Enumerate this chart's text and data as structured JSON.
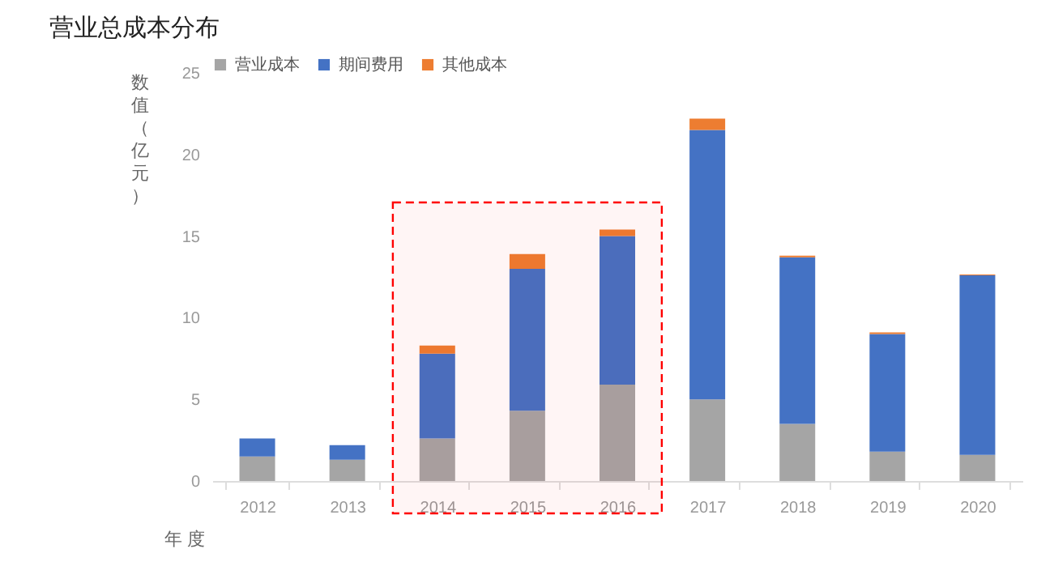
{
  "chart_data": {
    "type": "bar",
    "title": "营业总成本分布",
    "xlabel": "年 度",
    "ylabel": "数值（亿元）",
    "stacked": true,
    "categories": [
      "2012",
      "2013",
      "2014",
      "2015",
      "2016",
      "2017",
      "2018",
      "2019",
      "2020"
    ],
    "series": [
      {
        "name": "营业成本",
        "color": "#a5a5a5",
        "values": [
          1.5,
          1.3,
          2.6,
          4.3,
          5.9,
          5.0,
          3.5,
          1.8,
          1.6
        ]
      },
      {
        "name": "期间费用",
        "color": "#4472c4",
        "values": [
          1.1,
          0.9,
          5.2,
          8.7,
          9.1,
          16.5,
          10.2,
          7.2,
          11.0
        ]
      },
      {
        "name": "其他成本",
        "color": "#ed7d31",
        "values": [
          null,
          null,
          0.5,
          0.9,
          0.4,
          0.7,
          0.1,
          0.1,
          0.05
        ]
      }
    ],
    "ylim": [
      0,
      25
    ],
    "yticks": [
      0,
      5,
      10,
      15,
      20,
      25
    ],
    "grid": false,
    "legend": "top",
    "bands": [
      {
        "axis": "x",
        "from": "2014",
        "to": "2016",
        "color": "#ff0000"
      }
    ]
  }
}
